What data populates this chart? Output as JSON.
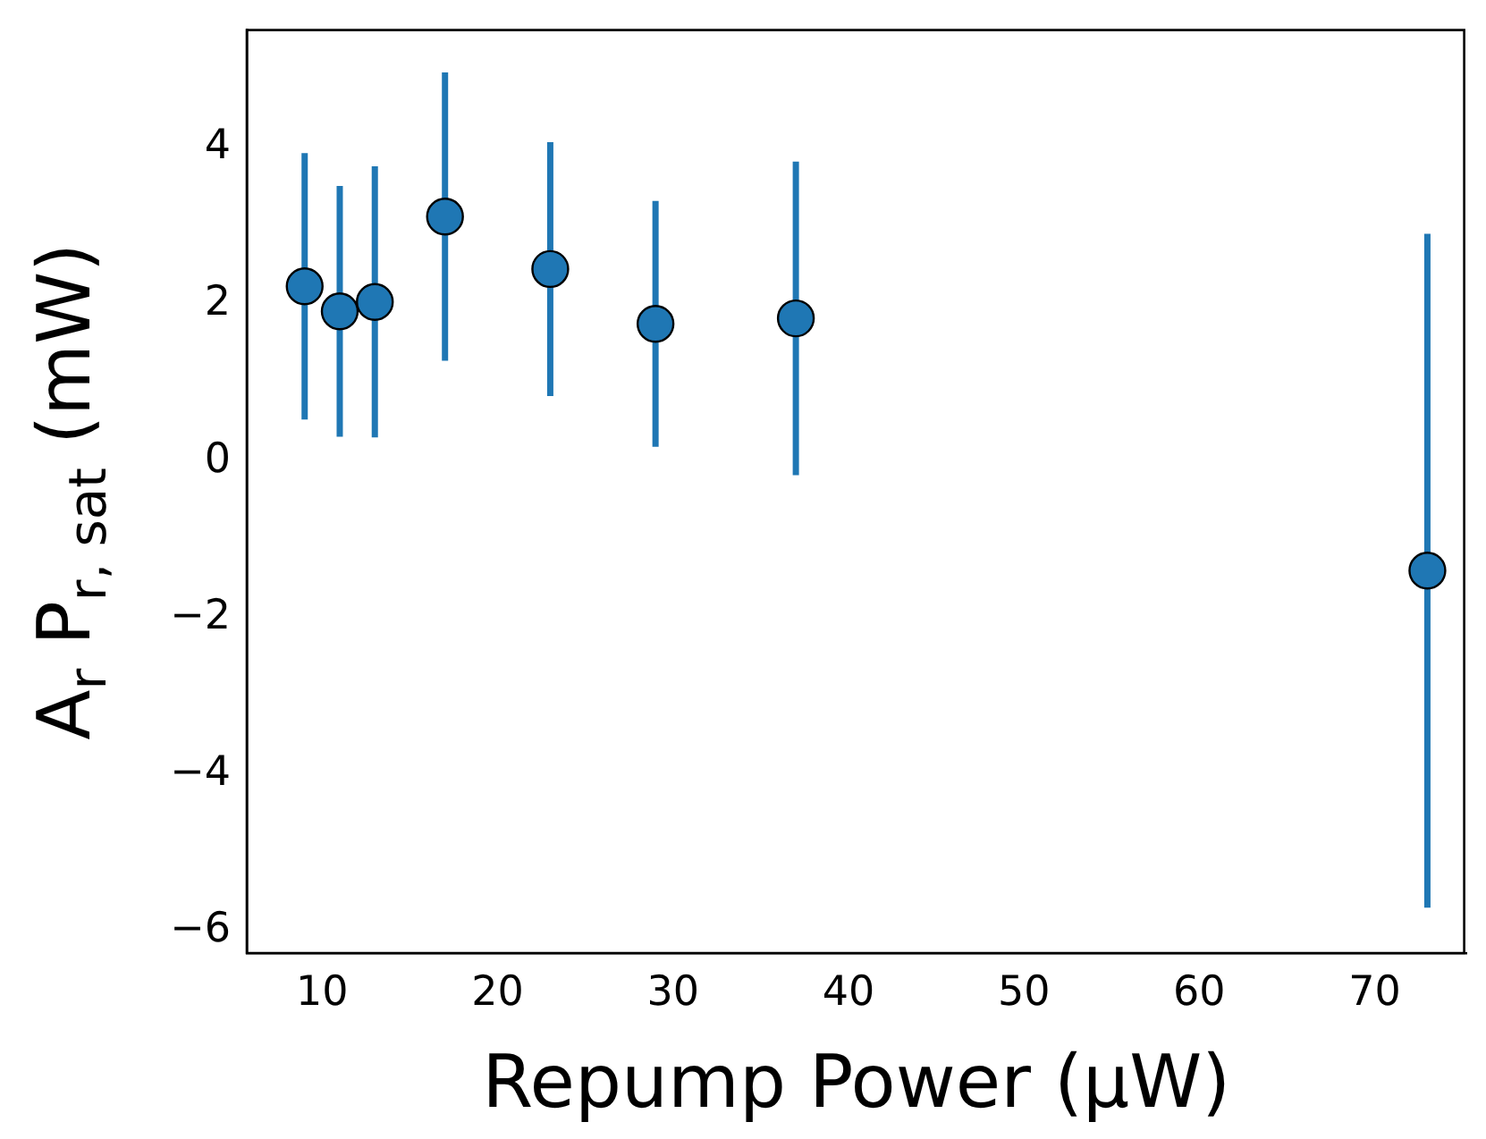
{
  "chart_data": {
    "type": "scatter",
    "xlabel": "Repump Power (µW)",
    "ylabel": "A$_{r}$ P$_{r, sat}$ (mW)",
    "x": [
      9,
      11,
      13,
      17,
      23,
      29,
      37,
      73
    ],
    "values": [
      2.23,
      1.91,
      2.03,
      3.12,
      2.45,
      1.75,
      1.82,
      -1.4
    ],
    "errors": [
      1.7,
      1.6,
      1.73,
      1.84,
      1.62,
      1.57,
      2.0,
      4.3
    ],
    "color": "#1f77b4",
    "marker": "circle",
    "xlim": [
      5.7,
      75.2
    ],
    "xticks": [
      10,
      20,
      30,
      40,
      50,
      60,
      70
    ],
    "ylim": [
      -6.28,
      5.5
    ],
    "yticks": [
      {
        "value": -6,
        "label": "−6"
      },
      {
        "value": -4,
        "label": "−4"
      },
      {
        "value": -2,
        "label": "−2"
      },
      0,
      2,
      4
    ]
  }
}
